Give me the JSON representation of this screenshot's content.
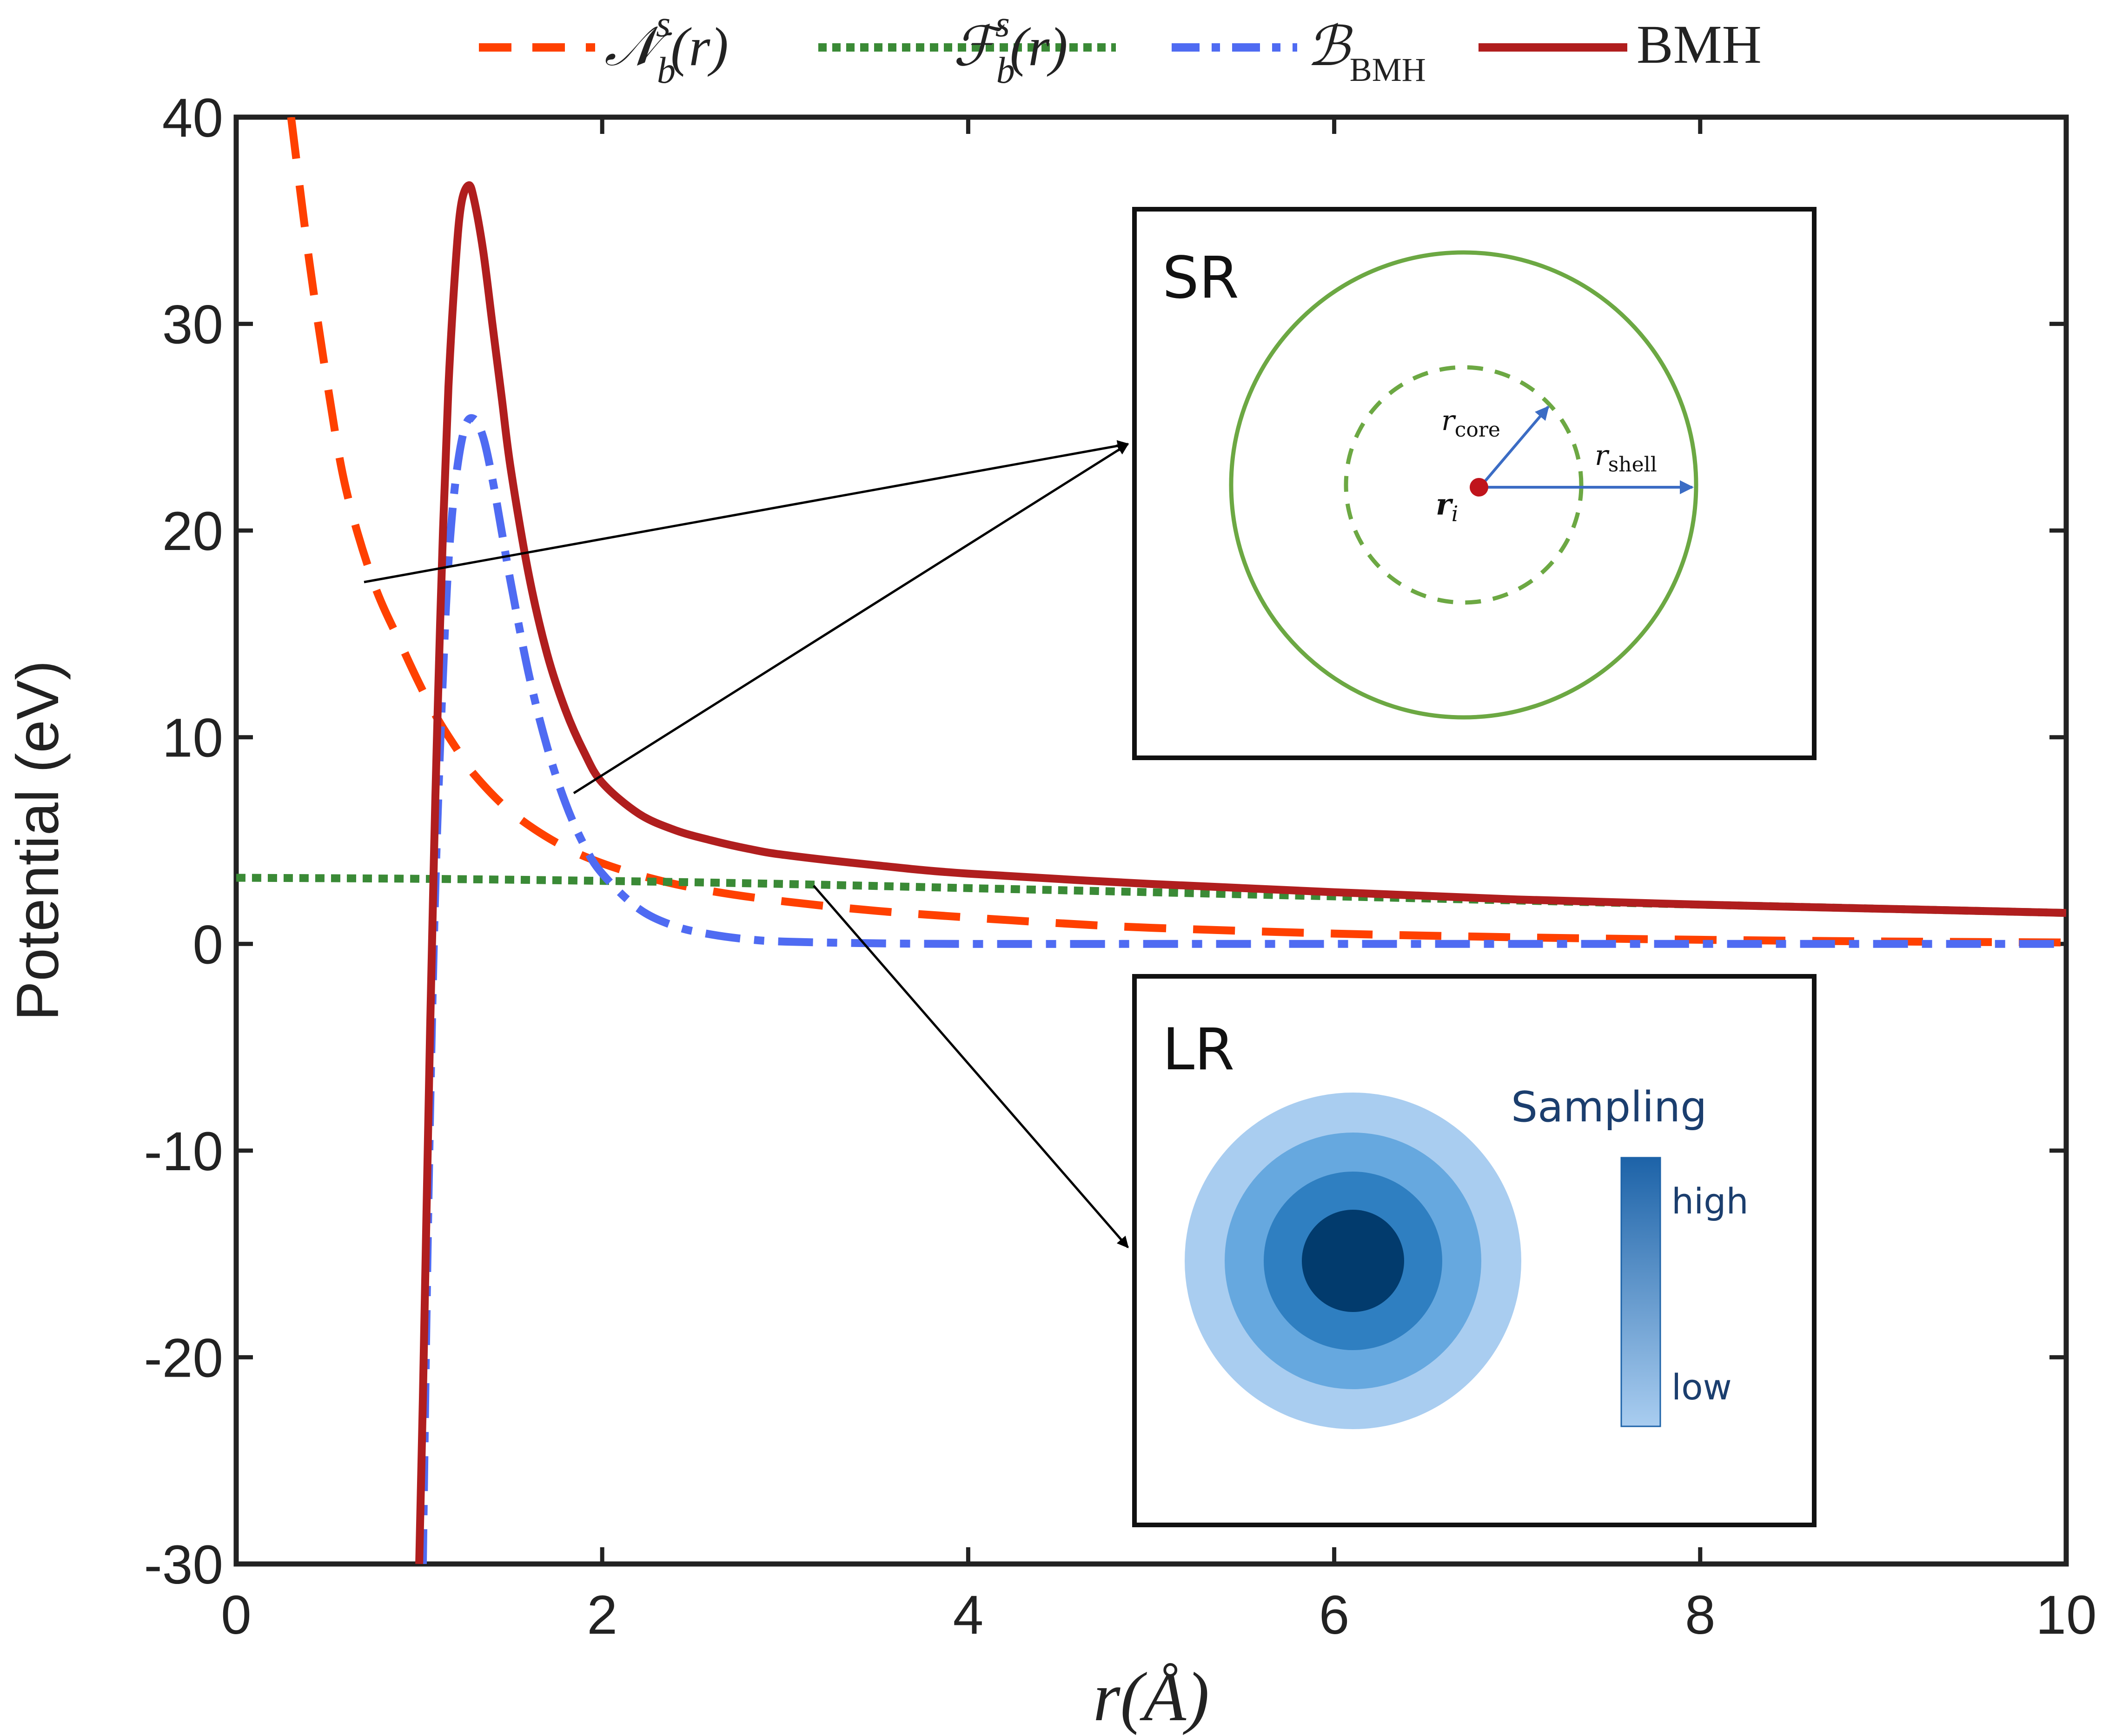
{
  "chart_data": {
    "type": "line",
    "xlabel": "r(Å)",
    "ylabel": "Potential (eV)",
    "xlim": [
      0,
      10
    ],
    "ylim": [
      -30,
      40
    ],
    "xticks": [
      0,
      2,
      4,
      6,
      8,
      10
    ],
    "yticks": [
      -30,
      -20,
      -10,
      0,
      10,
      20,
      30,
      40
    ],
    "xtick_labels": [
      "0",
      "2",
      "4",
      "6",
      "8",
      "10"
    ],
    "ytick_labels": [
      "-30",
      "-20",
      "-10",
      "0",
      "10",
      "20",
      "30",
      "40"
    ],
    "legend_position": "top, outside, horizontal",
    "series": [
      {
        "name": "N_b^s(r)",
        "legend_label": "𝒩",
        "sub": "b",
        "sup": "s",
        "arg": "(r)",
        "color": "#ff4000",
        "style": "dashed",
        "x": [
          0.3,
          0.4,
          0.5,
          0.6,
          0.75,
          0.9,
          1.0,
          1.1,
          1.2,
          1.3,
          1.5,
          1.75,
          2.0,
          2.3,
          2.6,
          3.0,
          3.5,
          4.0,
          4.5,
          5.0,
          6.0,
          7.0,
          8.0,
          9.0,
          10.0
        ],
        "values": [
          40,
          33,
          27,
          22,
          17.5,
          14.5,
          12.6,
          10.9,
          9.5,
          8.2,
          6.4,
          4.9,
          3.9,
          3.1,
          2.55,
          2.05,
          1.6,
          1.28,
          1.0,
          0.78,
          0.5,
          0.32,
          0.2,
          0.12,
          0.07
        ]
      },
      {
        "name": "F_b^s(r)",
        "legend_label": "ℱ",
        "sub": "b",
        "sup": "s",
        "arg": "(r)",
        "color": "#3a8a36",
        "style": "dotted",
        "x": [
          0,
          1,
          2,
          3,
          4,
          5,
          6,
          7,
          8,
          9,
          10
        ],
        "values": [
          3.2,
          3.15,
          3.05,
          2.9,
          2.7,
          2.5,
          2.3,
          2.1,
          1.9,
          1.7,
          1.5
        ]
      },
      {
        "name": "B_BMH",
        "legend_label": "ℬ",
        "sub": "BMH",
        "color": "#4f6bf2",
        "style": "dash-dot",
        "x": [
          1.02,
          1.04,
          1.06,
          1.08,
          1.1,
          1.13,
          1.16,
          1.2,
          1.25,
          1.3,
          1.35,
          1.4,
          1.45,
          1.5,
          1.6,
          1.7,
          1.8,
          1.9,
          2.0,
          2.2,
          2.4,
          2.6,
          2.8,
          3.0,
          3.5,
          4.0,
          5.0,
          6.0,
          8.0,
          10.0
        ],
        "values": [
          -30,
          -18,
          -8,
          0,
          6,
          13,
          18.5,
          22.5,
          25,
          25.4,
          24.5,
          22.5,
          20,
          17.5,
          13,
          9.5,
          6.8,
          4.8,
          3.4,
          1.7,
          0.85,
          0.45,
          0.22,
          0.11,
          0.03,
          0.0,
          0.0,
          0.0,
          0.0,
          0.0
        ]
      },
      {
        "name": "BMH",
        "legend_label": "BMH",
        "color": "#b01e1e",
        "style": "solid",
        "x": [
          1.0,
          1.02,
          1.04,
          1.06,
          1.08,
          1.1,
          1.13,
          1.16,
          1.2,
          1.23,
          1.27,
          1.3,
          1.35,
          1.4,
          1.45,
          1.5,
          1.6,
          1.7,
          1.8,
          1.9,
          2.0,
          2.2,
          2.4,
          2.6,
          2.8,
          3.0,
          3.5,
          4.0,
          5.0,
          6.0,
          7.0,
          8.0,
          9.0,
          10.0
        ],
        "values": [
          -30,
          -22,
          -13,
          -4,
          4,
          11,
          20,
          27,
          33,
          35.8,
          36.7,
          36,
          33.5,
          30,
          26.5,
          23,
          17.8,
          14,
          11.3,
          9.3,
          7.8,
          6.3,
          5.5,
          5.0,
          4.6,
          4.3,
          3.8,
          3.4,
          2.9,
          2.5,
          2.15,
          1.9,
          1.7,
          1.5
        ]
      }
    ],
    "annotations": [
      {
        "type": "arrow",
        "from": [
          0.7,
          17.3
        ],
        "to": "SR inset"
      },
      {
        "type": "arrow",
        "from": [
          1.8,
          7.2
        ],
        "to": "SR inset"
      },
      {
        "type": "arrow",
        "from": [
          3.1,
          2.8
        ],
        "to": "LR inset"
      }
    ]
  },
  "insets": {
    "sr": {
      "title": "SR",
      "r_core_label": "r",
      "r_core_sub": "core",
      "r_shell_label": "r",
      "r_shell_sub": "shell",
      "r_i_label": "r",
      "r_i_sub": "i",
      "circle_color": "#6ca843",
      "center_color": "#c0141c",
      "arrow_color": "#3b6cc4"
    },
    "lr": {
      "title": "LR",
      "sampling_title": "Sampling",
      "high_label": "high",
      "low_label": "low",
      "ring_colors": [
        "#a9cdf0",
        "#66a8df",
        "#2f7fc1",
        "#023b6d"
      ],
      "bar_top_color": "#1d63a8",
      "bar_bottom_color": "#a9cdf0"
    }
  }
}
